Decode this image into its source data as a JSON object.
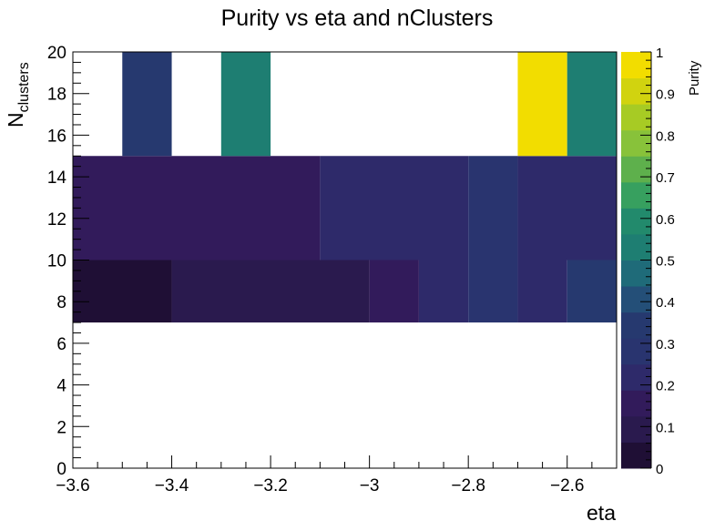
{
  "chart_data": {
    "type": "heatmap",
    "title": "Purity vs eta and nClusters",
    "xlabel": "eta",
    "ylabel_main": "N",
    "ylabel_sub": "clusters",
    "colorbar_label": "Purity",
    "xlim": [
      -3.6,
      -2.5
    ],
    "ylim": [
      0,
      20
    ],
    "zlim": [
      0,
      1
    ],
    "x_ticks": [
      {
        "v": -3.6,
        "label": "−3.6"
      },
      {
        "v": -3.4,
        "label": "−3.4"
      },
      {
        "v": -3.2,
        "label": "−3.2"
      },
      {
        "v": -3.0,
        "label": "−3"
      },
      {
        "v": -2.8,
        "label": "−2.8"
      },
      {
        "v": -2.6,
        "label": "−2.6"
      }
    ],
    "y_ticks": [
      {
        "v": 0,
        "label": "0"
      },
      {
        "v": 2,
        "label": "2"
      },
      {
        "v": 4,
        "label": "4"
      },
      {
        "v": 6,
        "label": "6"
      },
      {
        "v": 8,
        "label": "8"
      },
      {
        "v": 10,
        "label": "10"
      },
      {
        "v": 12,
        "label": "12"
      },
      {
        "v": 14,
        "label": "14"
      },
      {
        "v": 16,
        "label": "16"
      },
      {
        "v": 18,
        "label": "18"
      },
      {
        "v": 20,
        "label": "20"
      }
    ],
    "z_ticks": [
      {
        "v": 0,
        "label": "0"
      },
      {
        "v": 0.1,
        "label": "0.1"
      },
      {
        "v": 0.2,
        "label": "0.2"
      },
      {
        "v": 0.3,
        "label": "0.3"
      },
      {
        "v": 0.4,
        "label": "0.4"
      },
      {
        "v": 0.5,
        "label": "0.5"
      },
      {
        "v": 0.6,
        "label": "0.6"
      },
      {
        "v": 0.7,
        "label": "0.7"
      },
      {
        "v": 0.8,
        "label": "0.8"
      },
      {
        "v": 0.9,
        "label": "0.9"
      },
      {
        "v": 1,
        "label": "1"
      }
    ],
    "palette": [
      "#1f0f35",
      "#2a1a4e",
      "#321b5b",
      "#2e2a6a",
      "#29346f",
      "#26396f",
      "#244f78",
      "#1f6b79",
      "#1e7e72",
      "#228a6c",
      "#37a05f",
      "#5eb04c",
      "#88c23a",
      "#a7cb24",
      "#d1d30f",
      "#f2dd00"
    ],
    "cells": [
      {
        "x0": -3.6,
        "x1": -3.4,
        "y0": 7,
        "y1": 10,
        "z": 0.02
      },
      {
        "x0": -3.4,
        "x1": -3.0,
        "y0": 7,
        "y1": 10,
        "z": 0.08
      },
      {
        "x0": -3.0,
        "x1": -2.9,
        "y0": 7,
        "y1": 10,
        "z": 0.13
      },
      {
        "x0": -2.9,
        "x1": -2.8,
        "y0": 7,
        "y1": 10,
        "z": 0.19
      },
      {
        "x0": -2.8,
        "x1": -2.7,
        "y0": 7,
        "y1": 10,
        "z": 0.26
      },
      {
        "x0": -2.7,
        "x1": -2.6,
        "y0": 7,
        "y1": 10,
        "z": 0.19
      },
      {
        "x0": -2.6,
        "x1": -2.5,
        "y0": 7,
        "y1": 10,
        "z": 0.34
      },
      {
        "x0": -3.6,
        "x1": -3.1,
        "y0": 10,
        "y1": 15,
        "z": 0.13
      },
      {
        "x0": -3.1,
        "x1": -2.8,
        "y0": 10,
        "y1": 15,
        "z": 0.19
      },
      {
        "x0": -2.8,
        "x1": -2.7,
        "y0": 10,
        "y1": 15,
        "z": 0.26
      },
      {
        "x0": -2.7,
        "x1": -2.5,
        "y0": 10,
        "y1": 15,
        "z": 0.19
      },
      {
        "x0": -3.5,
        "x1": -3.4,
        "y0": 15,
        "y1": 20,
        "z": 0.34
      },
      {
        "x0": -3.3,
        "x1": -3.2,
        "y0": 15,
        "y1": 20,
        "z": 0.52
      },
      {
        "x0": -2.7,
        "x1": -2.6,
        "y0": 15,
        "y1": 20,
        "z": 1.0
      },
      {
        "x0": -2.6,
        "x1": -2.5,
        "y0": 15,
        "y1": 20,
        "z": 0.52
      }
    ]
  }
}
